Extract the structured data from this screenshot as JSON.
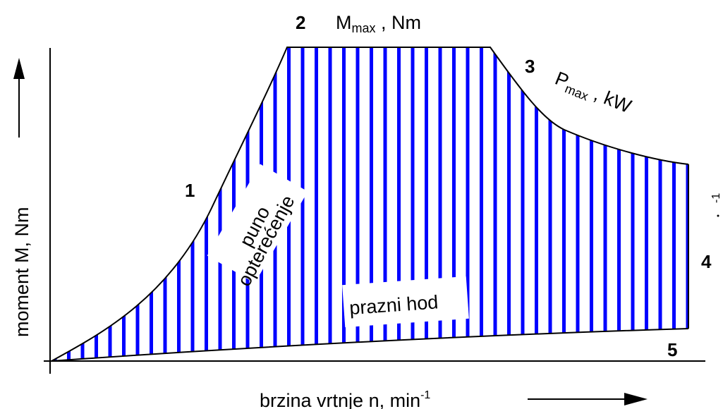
{
  "labels": {
    "n1": "1",
    "n2": "2",
    "n3": "3",
    "n4": "4",
    "n5": "5",
    "mmax_main": "M",
    "mmax_sub": "max",
    "mmax_unit": " , Nm",
    "pmax_main": "P",
    "pmax_sub": "max",
    "pmax_unit": " , kW",
    "puno": "puno",
    "opterecenje": "opterećenje",
    "prazni_hod": "prazni hod",
    "y_axis": "moment  M, Nm",
    "x_axis": "brzina vrtnje  n, min",
    "x_axis_sup": "-1",
    "stray_sup": "-1"
  },
  "colors": {
    "hatch": "#0000ff",
    "outline": "#000000",
    "background": "#ffffff"
  }
}
